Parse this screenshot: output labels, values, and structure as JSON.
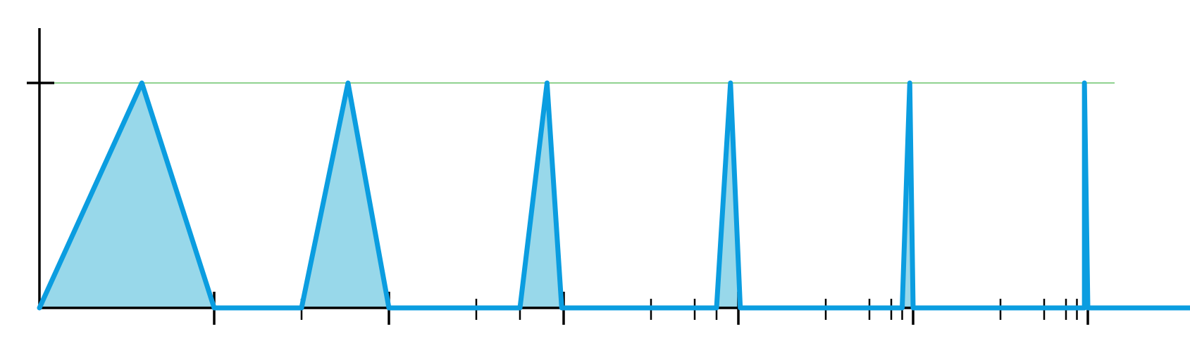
{
  "colors": {
    "background": "#ffffff",
    "axis": "#000000",
    "peak_line": "#6cc46c",
    "spike_stroke": "#0b9de0",
    "spike_fill": "#98d8ea"
  },
  "diagram": {
    "baseline_value": 0,
    "peak_value": 1,
    "major_ticks": [
      1,
      2,
      3,
      4,
      5,
      6
    ],
    "minor_ticks": [
      1.5,
      2.5,
      2.75,
      3.5,
      3.75,
      3.875,
      4.5,
      4.75,
      4.875,
      4.9375,
      5.5,
      5.75,
      5.875,
      5.9375
    ],
    "spikes": [
      {
        "start": 0,
        "peak": 0.5859,
        "end": 1
      },
      {
        "start": 1.5,
        "peak": 1.7659,
        "end": 2
      },
      {
        "start": 2.75,
        "peak": 2.9049,
        "end": 2.9889
      },
      {
        "start": 3.875,
        "peak": 3.9549,
        "end": 4.0109
      },
      {
        "start": 4.9375,
        "peak": 4.9809,
        "end": 5.0
      },
      {
        "start": 5.9805,
        "peak": 5.9805,
        "end": 6.0
      }
    ]
  }
}
